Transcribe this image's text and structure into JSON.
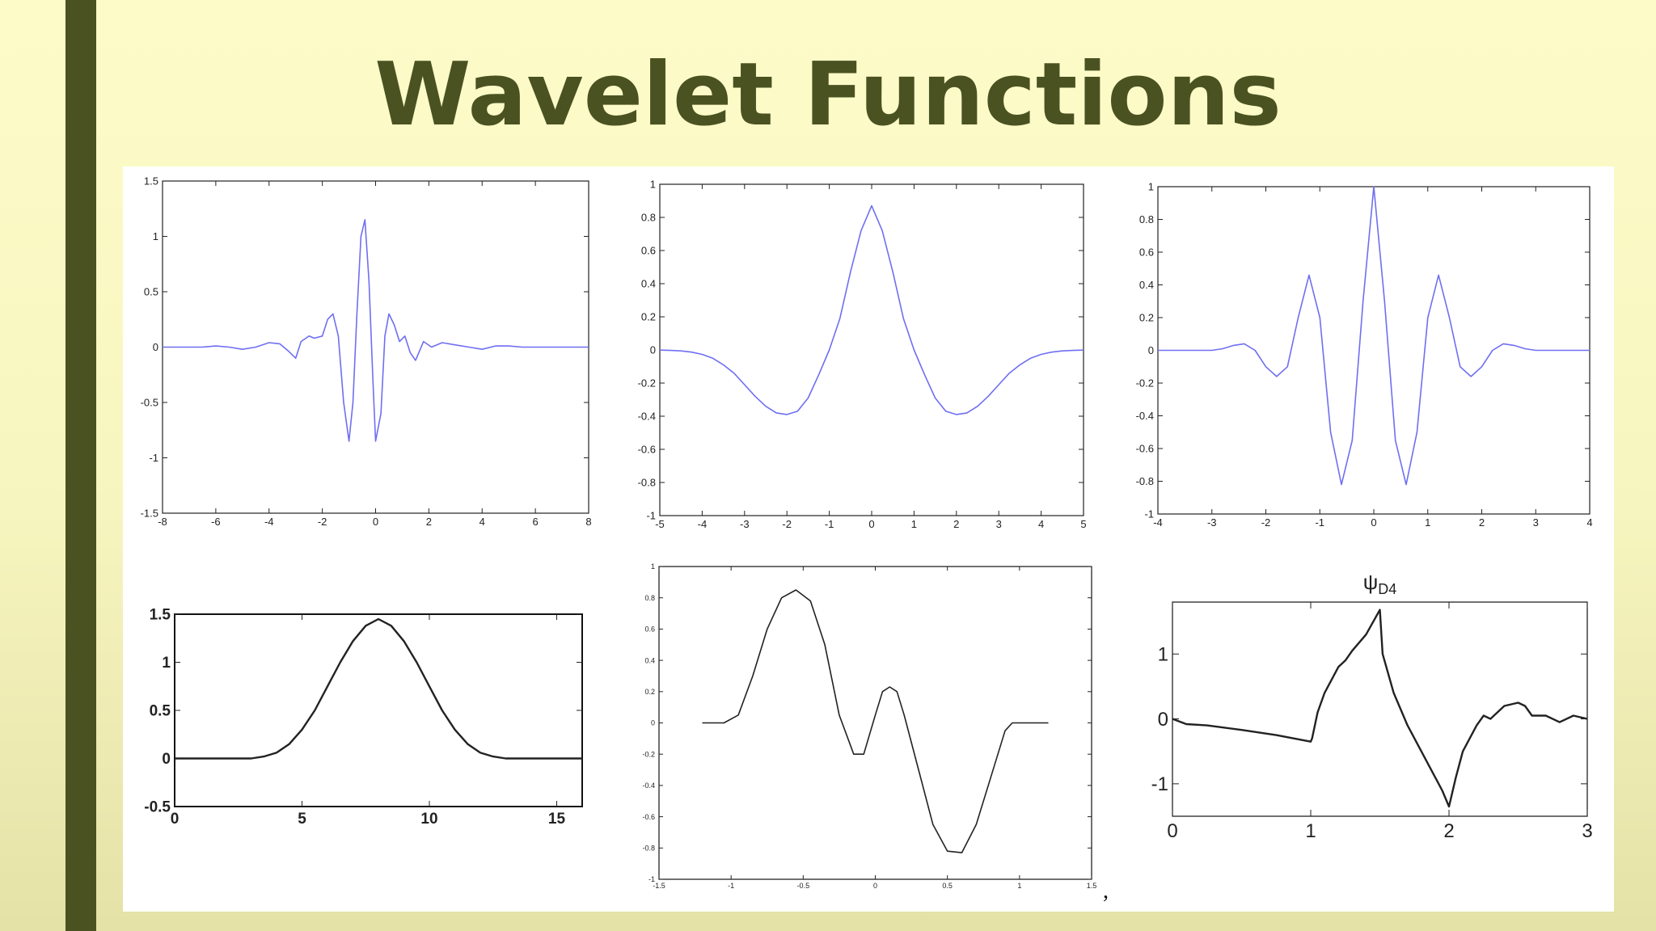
{
  "slide": {
    "title": "Wavelet Functions",
    "colors": {
      "background": "#fdfcc9",
      "accent_bar": "#4b5222",
      "title": "#4b5222",
      "blue_curve": "#6f6ff2",
      "black_curve": "#222222"
    }
  },
  "chart_data": [
    {
      "type": "line",
      "name": "top-left",
      "xlim": [
        -8,
        8
      ],
      "ylim": [
        -1.5,
        1.5
      ],
      "xticks": [
        "-8",
        "-6",
        "-4",
        "-2",
        "0",
        "2",
        "4",
        "6",
        "8"
      ],
      "yticks": [
        "-1.5",
        "-1",
        "-0.5",
        "0",
        "0.5",
        "1",
        "1.5"
      ],
      "series": [
        {
          "color": "#6f6ff2",
          "x": [
            -8,
            -6.5,
            -6,
            -5.5,
            -5,
            -4.5,
            -4,
            -3.6,
            -3.3,
            -3,
            -2.8,
            -2.5,
            -2.3,
            -2,
            -1.8,
            -1.6,
            -1.4,
            -1.2,
            -1,
            -0.85,
            -0.7,
            -0.55,
            -0.4,
            -0.25,
            -0.1,
            0,
            0.2,
            0.35,
            0.5,
            0.7,
            0.9,
            1.1,
            1.3,
            1.5,
            1.8,
            2.1,
            2.5,
            3,
            3.5,
            4,
            4.5,
            5,
            5.5,
            6,
            7,
            8
          ],
          "y": [
            0,
            0,
            0.01,
            0,
            -0.02,
            0,
            0.04,
            0.03,
            -0.03,
            -0.1,
            0.05,
            0.1,
            0.08,
            0.1,
            0.25,
            0.3,
            0.1,
            -0.5,
            -0.85,
            -0.5,
            0.3,
            1.0,
            1.15,
            0.6,
            -0.3,
            -0.85,
            -0.6,
            0.1,
            0.3,
            0.2,
            0.05,
            0.1,
            -0.05,
            -0.12,
            0.05,
            0,
            0.04,
            0.02,
            0,
            -0.02,
            0.01,
            0.01,
            0,
            0,
            0,
            0
          ]
        }
      ]
    },
    {
      "type": "line",
      "name": "top-middle",
      "xlim": [
        -5,
        5
      ],
      "ylim": [
        -1,
        1
      ],
      "xticks": [
        "-5",
        "-4",
        "-3",
        "-2",
        "-1",
        "0",
        "1",
        "2",
        "3",
        "4",
        "5"
      ],
      "yticks": [
        "-1",
        "-0.8",
        "-0.6",
        "-0.4",
        "-0.2",
        "0",
        "0.2",
        "0.4",
        "0.6",
        "0.8",
        "1"
      ],
      "series": [
        {
          "color": "#6f6ff2",
          "x": [
            -5,
            -4.75,
            -4.5,
            -4.25,
            -4,
            -3.75,
            -3.5,
            -3.25,
            -3,
            -2.75,
            -2.5,
            -2.25,
            -2,
            -1.75,
            -1.5,
            -1.25,
            -1,
            -0.75,
            -0.5,
            -0.25,
            0,
            0.25,
            0.5,
            0.75,
            1,
            1.25,
            1.5,
            1.75,
            2,
            2.25,
            2.5,
            2.75,
            3,
            3.25,
            3.5,
            3.75,
            4,
            4.25,
            4.5,
            4.75,
            5
          ],
          "y": [
            -0.001,
            -0.003,
            -0.006,
            -0.013,
            -0.027,
            -0.05,
            -0.09,
            -0.14,
            -0.21,
            -0.28,
            -0.34,
            -0.38,
            -0.39,
            -0.37,
            -0.29,
            -0.15,
            0,
            0.19,
            0.47,
            0.72,
            0.87,
            0.72,
            0.47,
            0.19,
            0,
            -0.15,
            -0.29,
            -0.37,
            -0.39,
            -0.38,
            -0.34,
            -0.28,
            -0.21,
            -0.14,
            -0.09,
            -0.05,
            -0.027,
            -0.013,
            -0.006,
            -0.003,
            -0.001
          ]
        }
      ]
    },
    {
      "type": "line",
      "name": "top-right",
      "xlim": [
        -4,
        4
      ],
      "ylim": [
        -1,
        1
      ],
      "xticks": [
        "-4",
        "-3",
        "-2",
        "-1",
        "0",
        "1",
        "2",
        "3",
        "4"
      ],
      "yticks": [
        "-1",
        "-0.8",
        "-0.6",
        "-0.4",
        "-0.2",
        "0",
        "0.2",
        "0.4",
        "0.6",
        "0.8",
        "1"
      ],
      "series": [
        {
          "color": "#6f6ff2",
          "x": [
            -4,
            -3.5,
            -3,
            -2.8,
            -2.6,
            -2.4,
            -2.2,
            -2,
            -1.8,
            -1.6,
            -1.4,
            -1.2,
            -1,
            -0.8,
            -0.6,
            -0.4,
            -0.2,
            0,
            0.2,
            0.4,
            0.6,
            0.8,
            1,
            1.2,
            1.4,
            1.6,
            1.8,
            2,
            2.2,
            2.4,
            2.6,
            2.8,
            3,
            3.5,
            4
          ],
          "y": [
            0,
            0,
            0,
            0.01,
            0.03,
            0.04,
            0,
            -0.1,
            -0.16,
            -0.1,
            0.2,
            0.46,
            0.2,
            -0.5,
            -0.82,
            -0.55,
            0.3,
            1.0,
            0.3,
            -0.55,
            -0.82,
            -0.5,
            0.2,
            0.46,
            0.2,
            -0.1,
            -0.16,
            -0.1,
            0,
            0.04,
            0.03,
            0.01,
            0,
            0,
            0
          ]
        }
      ]
    },
    {
      "type": "line",
      "name": "bottom-left",
      "xlim": [
        0,
        16
      ],
      "ylim": [
        -0.5,
        1.5
      ],
      "xticks": [
        "0",
        "5",
        "10",
        "15"
      ],
      "yticks": [
        "-0.5",
        "0",
        "0.5",
        "1",
        "1.5"
      ],
      "series": [
        {
          "color": "#222222",
          "x": [
            0,
            1,
            2,
            3,
            3.5,
            4,
            4.5,
            5,
            5.5,
            6,
            6.5,
            7,
            7.5,
            8,
            8.5,
            9,
            9.5,
            10,
            10.5,
            11,
            11.5,
            12,
            12.5,
            13,
            14,
            15,
            16
          ],
          "y": [
            0,
            0,
            0,
            0,
            0.02,
            0.06,
            0.15,
            0.3,
            0.5,
            0.75,
            1.0,
            1.22,
            1.38,
            1.45,
            1.38,
            1.22,
            1.0,
            0.75,
            0.5,
            0.3,
            0.15,
            0.06,
            0.02,
            0,
            0,
            0,
            0
          ]
        }
      ]
    },
    {
      "type": "line",
      "name": "bottom-middle",
      "xlim": [
        -1.5,
        1.5
      ],
      "ylim": [
        -1,
        1
      ],
      "xticks": [
        "-1.5",
        "-1",
        "-0.5",
        "0",
        "0.5",
        "1",
        "1.5"
      ],
      "yticks": [
        "-1",
        "-0.8",
        "-0.6",
        "-0.4",
        "-0.2",
        "0",
        "0.2",
        "0.4",
        "0.6",
        "0.8",
        "1"
      ],
      "series": [
        {
          "color": "#222222",
          "x": [
            -1.2,
            -1.05,
            -0.95,
            -0.85,
            -0.75,
            -0.65,
            -0.55,
            -0.45,
            -0.35,
            -0.25,
            -0.15,
            -0.08,
            0,
            0.05,
            0.1,
            0.15,
            0.2,
            0.3,
            0.4,
            0.5,
            0.6,
            0.7,
            0.8,
            0.9,
            0.95,
            1.0,
            1.2
          ],
          "y": [
            0,
            0,
            0.05,
            0.3,
            0.6,
            0.8,
            0.85,
            0.78,
            0.5,
            0.05,
            -0.2,
            -0.2,
            0.05,
            0.2,
            0.23,
            0.2,
            0.05,
            -0.3,
            -0.65,
            -0.82,
            -0.83,
            -0.65,
            -0.35,
            -0.05,
            0,
            0,
            0
          ]
        }
      ]
    },
    {
      "type": "line",
      "name": "bottom-right",
      "title": "ψD4",
      "xlim": [
        0,
        3
      ],
      "ylim": [
        -1.5,
        1.8
      ],
      "xticks": [
        "0",
        "1",
        "2",
        "3"
      ],
      "yticks": [
        "-1",
        "0",
        "1"
      ],
      "series": [
        {
          "color": "#222222",
          "x": [
            0,
            0.1,
            0.25,
            0.5,
            0.75,
            1.0,
            1.01,
            1.05,
            1.1,
            1.2,
            1.25,
            1.3,
            1.4,
            1.5,
            1.52,
            1.6,
            1.7,
            1.8,
            1.9,
            1.95,
            2.0,
            2.05,
            2.1,
            2.2,
            2.25,
            2.3,
            2.4,
            2.5,
            2.55,
            2.6,
            2.7,
            2.8,
            2.9,
            3.0
          ],
          "y": [
            0,
            -0.08,
            -0.1,
            -0.17,
            -0.25,
            -0.35,
            -0.3,
            0.1,
            0.4,
            0.8,
            0.9,
            1.05,
            1.3,
            1.68,
            1.0,
            0.4,
            -0.1,
            -0.5,
            -0.9,
            -1.1,
            -1.35,
            -0.9,
            -0.5,
            -0.1,
            0.05,
            0,
            0.2,
            0.25,
            0.2,
            0.05,
            0.05,
            -0.05,
            0.05,
            0.0
          ]
        }
      ]
    }
  ]
}
